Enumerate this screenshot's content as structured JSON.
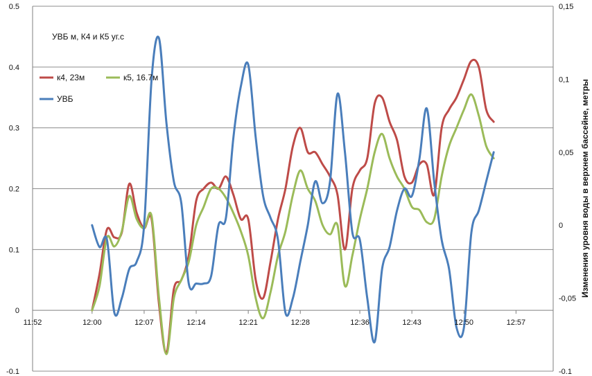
{
  "chart_data": {
    "type": "line",
    "title": "УВБ м,  К4 и К5 уг.с",
    "y2label": "Изменения уровня воды в верхнем бассейне, метры",
    "ylim": [
      -0.1,
      0.5
    ],
    "y2lim": [
      -0.1,
      0.15
    ],
    "xlim": [
      "11:52",
      "13:02"
    ],
    "y_ticks": [
      "-0.1",
      "0",
      "0.1",
      "0.2",
      "0.3",
      "0.4",
      "0.5"
    ],
    "y2_ticks": [
      "-0.1",
      "-0,05",
      "0",
      "0,05",
      "0,1",
      "0,15"
    ],
    "x_ticks": [
      "11:52",
      "12:00",
      "12:07",
      "12:14",
      "12:21",
      "12:28",
      "12:36",
      "12:43",
      "12:50",
      "12:57"
    ],
    "grid": true,
    "legend_position": "top-left",
    "colors": {
      "k4": "#be4b48",
      "k5": "#9bbb59",
      "uvb": "#4a7ebb"
    },
    "series": [
      {
        "name": "к4,  23м",
        "axis": "left",
        "points": [
          [
            "12:00",
            0.0
          ],
          [
            "12:01",
            0.06
          ],
          [
            "12:02",
            0.133
          ],
          [
            "12:03",
            0.12
          ],
          [
            "12:04",
            0.128
          ],
          [
            "12:05",
            0.208
          ],
          [
            "12:06",
            0.16
          ],
          [
            "12:07",
            0.135
          ],
          [
            "12:08",
            0.15
          ],
          [
            "12:09",
            0.01
          ],
          [
            "12:10",
            -0.07
          ],
          [
            "12:11",
            0.035
          ],
          [
            "12:12",
            0.05
          ],
          [
            "12:13",
            0.09
          ],
          [
            "12:14",
            0.18
          ],
          [
            "12:15",
            0.2
          ],
          [
            "12:16",
            0.21
          ],
          [
            "12:17",
            0.2
          ],
          [
            "12:18",
            0.22
          ],
          [
            "12:19",
            0.19
          ],
          [
            "12:20",
            0.15
          ],
          [
            "12:21",
            0.15
          ],
          [
            "12:22",
            0.05
          ],
          [
            "12:23",
            0.02
          ],
          [
            "12:24",
            0.08
          ],
          [
            "12:25",
            0.15
          ],
          [
            "12:26",
            0.2
          ],
          [
            "12:27",
            0.27
          ],
          [
            "12:28",
            0.3
          ],
          [
            "12:29",
            0.26
          ],
          [
            "12:30",
            0.26
          ],
          [
            "12:31",
            0.24
          ],
          [
            "12:32",
            0.22
          ],
          [
            "12:33",
            0.19
          ],
          [
            "12:34",
            0.1
          ],
          [
            "12:35",
            0.2
          ],
          [
            "12:36",
            0.23
          ],
          [
            "12:37",
            0.25
          ],
          [
            "12:38",
            0.34
          ],
          [
            "12:39",
            0.35
          ],
          [
            "12:40",
            0.31
          ],
          [
            "12:41",
            0.28
          ],
          [
            "12:42",
            0.22
          ],
          [
            "12:43",
            0.21
          ],
          [
            "12:44",
            0.24
          ],
          [
            "12:45",
            0.24
          ],
          [
            "12:46",
            0.19
          ],
          [
            "12:47",
            0.3
          ],
          [
            "12:48",
            0.33
          ],
          [
            "12:49",
            0.35
          ],
          [
            "12:50",
            0.38
          ],
          [
            "12:51",
            0.41
          ],
          [
            "12:52",
            0.4
          ],
          [
            "12:53",
            0.33
          ],
          [
            "12:54",
            0.31
          ]
        ]
      },
      {
        "name": "к5,  16.7м",
        "axis": "left",
        "points": [
          [
            "12:00",
            0.0
          ],
          [
            "12:01",
            0.04
          ],
          [
            "12:02",
            0.12
          ],
          [
            "12:03",
            0.105
          ],
          [
            "12:04",
            0.13
          ],
          [
            "12:05",
            0.188
          ],
          [
            "12:06",
            0.15
          ],
          [
            "12:07",
            0.135
          ],
          [
            "12:08",
            0.155
          ],
          [
            "12:09",
            0.02
          ],
          [
            "12:10",
            -0.072
          ],
          [
            "12:11",
            0.02
          ],
          [
            "12:12",
            0.05
          ],
          [
            "12:13",
            0.08
          ],
          [
            "12:14",
            0.14
          ],
          [
            "12:15",
            0.17
          ],
          [
            "12:16",
            0.2
          ],
          [
            "12:17",
            0.2
          ],
          [
            "12:18",
            0.185
          ],
          [
            "12:19",
            0.16
          ],
          [
            "12:20",
            0.13
          ],
          [
            "12:21",
            0.09
          ],
          [
            "12:22",
            0.02
          ],
          [
            "12:23",
            -0.013
          ],
          [
            "12:24",
            0.03
          ],
          [
            "12:25",
            0.09
          ],
          [
            "12:26",
            0.13
          ],
          [
            "12:27",
            0.19
          ],
          [
            "12:28",
            0.23
          ],
          [
            "12:29",
            0.2
          ],
          [
            "12:30",
            0.18
          ],
          [
            "12:31",
            0.14
          ],
          [
            "12:32",
            0.125
          ],
          [
            "12:33",
            0.14
          ],
          [
            "12:34",
            0.04
          ],
          [
            "12:35",
            0.09
          ],
          [
            "12:36",
            0.15
          ],
          [
            "12:37",
            0.2
          ],
          [
            "12:38",
            0.26
          ],
          [
            "12:39",
            0.29
          ],
          [
            "12:40",
            0.25
          ],
          [
            "12:41",
            0.22
          ],
          [
            "12:42",
            0.2
          ],
          [
            "12:43",
            0.17
          ],
          [
            "12:44",
            0.165
          ],
          [
            "12:45",
            0.145
          ],
          [
            "12:46",
            0.15
          ],
          [
            "12:47",
            0.22
          ],
          [
            "12:48",
            0.27
          ],
          [
            "12:49",
            0.3
          ],
          [
            "12:50",
            0.33
          ],
          [
            "12:51",
            0.355
          ],
          [
            "12:52",
            0.32
          ],
          [
            "12:53",
            0.27
          ],
          [
            "12:54",
            0.25
          ]
        ]
      },
      {
        "name": "УВБ",
        "axis": "right",
        "points": [
          [
            "12:00",
            0.0
          ],
          [
            "12:01",
            -0.015
          ],
          [
            "12:02",
            -0.01
          ],
          [
            "12:03",
            -0.06
          ],
          [
            "12:04",
            -0.05
          ],
          [
            "12:05",
            -0.03
          ],
          [
            "12:06",
            -0.025
          ],
          [
            "12:07",
            0.0
          ],
          [
            "12:08",
            0.1
          ],
          [
            "12:09",
            0.128
          ],
          [
            "12:10",
            0.07
          ],
          [
            "12:11",
            0.03
          ],
          [
            "12:12",
            0.015
          ],
          [
            "12:13",
            -0.04
          ],
          [
            "12:14",
            -0.04
          ],
          [
            "12:15",
            -0.04
          ],
          [
            "12:16",
            -0.035
          ],
          [
            "12:17",
            0.0
          ],
          [
            "12:18",
            0.005
          ],
          [
            "12:19",
            0.06
          ],
          [
            "12:20",
            0.095
          ],
          [
            "12:21",
            0.11
          ],
          [
            "12:22",
            0.06
          ],
          [
            "12:23",
            0.02
          ],
          [
            "12:24",
            0.005
          ],
          [
            "12:25",
            -0.01
          ],
          [
            "12:26",
            -0.06
          ],
          [
            "12:27",
            -0.05
          ],
          [
            "12:28",
            -0.025
          ],
          [
            "12:29",
            0.0
          ],
          [
            "12:30",
            0.03
          ],
          [
            "12:31",
            0.015
          ],
          [
            "12:32",
            0.03
          ],
          [
            "12:33",
            0.09
          ],
          [
            "12:34",
            0.05
          ],
          [
            "12:35",
            -0.005
          ],
          [
            "12:36",
            -0.01
          ],
          [
            "12:37",
            -0.05
          ],
          [
            "12:38",
            -0.08
          ],
          [
            "12:39",
            -0.03
          ],
          [
            "12:40",
            -0.015
          ],
          [
            "12:41",
            0.01
          ],
          [
            "12:42",
            0.025
          ],
          [
            "12:43",
            0.02
          ],
          [
            "12:44",
            0.045
          ],
          [
            "12:45",
            0.08
          ],
          [
            "12:46",
            0.03
          ],
          [
            "12:47",
            -0.01
          ],
          [
            "12:48",
            -0.03
          ],
          [
            "12:49",
            -0.07
          ],
          [
            "12:50",
            -0.07
          ],
          [
            "12:51",
            -0.005
          ],
          [
            "12:52",
            0.01
          ],
          [
            "12:53",
            0.03
          ],
          [
            "12:54",
            0.05
          ]
        ]
      }
    ]
  }
}
